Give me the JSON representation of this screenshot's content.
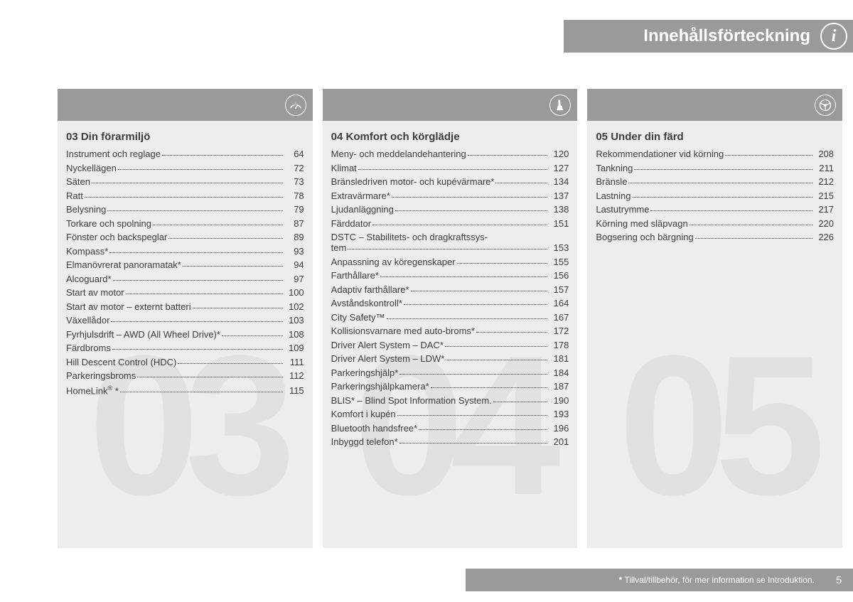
{
  "header": {
    "title": "Innehållsförteckning"
  },
  "page_number": "5",
  "footnote": " Tillval/tillbehör, för mer information se Introduktion.",
  "columns": [
    {
      "watermark": "03",
      "heading": "03 Din förarmiljö",
      "entries": [
        {
          "label": "Instrument och reglage",
          "page": "64"
        },
        {
          "label": "Nyckellägen",
          "page": "72"
        },
        {
          "label": "Säten",
          "page": "73"
        },
        {
          "label": "Ratt",
          "page": "78"
        },
        {
          "label": "Belysning",
          "page": "79"
        },
        {
          "label": "Torkare och spolning",
          "page": "87"
        },
        {
          "label": "Fönster och backspeglar",
          "page": "89"
        },
        {
          "label": "Kompass*",
          "page": "93"
        },
        {
          "label": "Elmanövrerat panoramatak* ",
          "page": "94"
        },
        {
          "label": "Alcoguard*",
          "page": "97"
        },
        {
          "label": "Start av motor",
          "page": "100"
        },
        {
          "label": "Start av motor – externt batteri",
          "page": "102"
        },
        {
          "label": "Växellådor",
          "page": "103"
        },
        {
          "label": "Fyrhjulsdrift – AWD (All Wheel Drive)*",
          "page": "108"
        },
        {
          "label": "Färdbroms",
          "page": "109"
        },
        {
          "label": "Hill Descent Control (HDC)",
          "page": "111"
        },
        {
          "label": "Parkeringsbroms",
          "page": "112"
        },
        {
          "label": "HomeLink® *",
          "page": "115",
          "reg": true
        }
      ]
    },
    {
      "watermark": "04",
      "heading": "04 Komfort och körglädje",
      "entries": [
        {
          "label": "Meny- och meddelandehantering",
          "page": "120"
        },
        {
          "label": "Klimat",
          "page": "127"
        },
        {
          "label": "Bränsledriven motor- och kupévärmare*",
          "page": "134"
        },
        {
          "label": "Extravärmare*",
          "page": "137"
        },
        {
          "label": "Ljudanläggning",
          "page": "138"
        },
        {
          "label": "Färddator",
          "page": "151"
        },
        {
          "label": "DSTC – Stabilitets- och dragkraftssystem",
          "page": "153",
          "wrap": true
        },
        {
          "label": "Anpassning av köregenskaper",
          "page": "155"
        },
        {
          "label": "Farthållare*",
          "page": "156"
        },
        {
          "label": "Adaptiv farthållare*",
          "page": "157"
        },
        {
          "label": "Avståndskontroll*",
          "page": "164"
        },
        {
          "label": "City Safety™",
          "page": "167"
        },
        {
          "label": "Kollisionsvarnare med auto-broms*",
          "page": "172"
        },
        {
          "label": "Driver Alert System – DAC*",
          "page": "178"
        },
        {
          "label": "Driver Alert System – LDW*",
          "page": "181"
        },
        {
          "label": "Parkeringshjälp*",
          "page": "184"
        },
        {
          "label": "Parkeringshjälpkamera*",
          "page": "187"
        },
        {
          "label": "BLIS* – Blind Spot Information System. ",
          "page": "190"
        },
        {
          "label": "Komfort i kupén",
          "page": "193"
        },
        {
          "label": "Bluetooth handsfree*",
          "page": "196"
        },
        {
          "label": "Inbyggd telefon*",
          "page": "201"
        }
      ]
    },
    {
      "watermark": "05",
      "heading": "05 Under din färd",
      "entries": [
        {
          "label": "Rekommendationer vid körning",
          "page": "208"
        },
        {
          "label": "Tankning",
          "page": "211"
        },
        {
          "label": "Bränsle",
          "page": "212"
        },
        {
          "label": "Lastning",
          "page": "215"
        },
        {
          "label": "Lastutrymme",
          "page": "217"
        },
        {
          "label": "Körning med släpvagn",
          "page": "220"
        },
        {
          "label": "Bogsering och bärgning",
          "page": "226"
        }
      ]
    }
  ]
}
